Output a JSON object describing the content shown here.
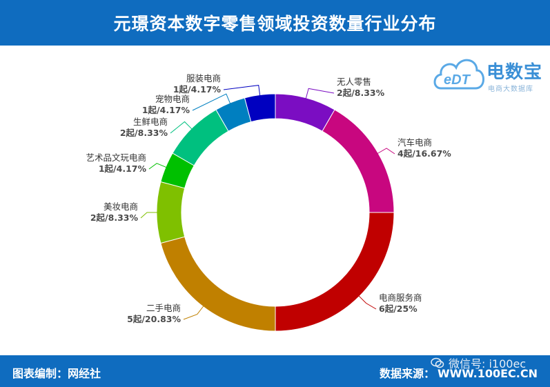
{
  "header": {
    "title": "元璟资本数字零售领域投资数量行业分布"
  },
  "footer": {
    "credit": "图表编制：网经社",
    "source_label": "数据来源：",
    "source_url": "WWW.100EC.CN"
  },
  "watermark": {
    "text": "微信号: i100ec"
  },
  "logo": {
    "mark": "eDT",
    "brand": "电数宝",
    "tagline": "电商大数据库"
  },
  "colors": {
    "header_bg": "#0f6cbf",
    "footer_bg": "#0f6cbf"
  },
  "chart_data": {
    "type": "pie",
    "donut": true,
    "unit": "起",
    "slices": [
      {
        "name": "无人零售",
        "value": 2,
        "percent": "8.33%",
        "label": "2起/8.33%",
        "color": "#7b0dc2"
      },
      {
        "name": "汽车电商",
        "value": 4,
        "percent": "16.67%",
        "label": "4起/16.67%",
        "color": "#c8077f"
      },
      {
        "name": "电商服务商",
        "value": 6,
        "percent": "25%",
        "label": "6起/25%",
        "color": "#c00000"
      },
      {
        "name": "二手电商",
        "value": 5,
        "percent": "20.83%",
        "label": "5起/20.83%",
        "color": "#c08000"
      },
      {
        "name": "美妆电商",
        "value": 2,
        "percent": "8.33%",
        "label": "2起/8.33%",
        "color": "#7fc000"
      },
      {
        "name": "艺术品文玩电商",
        "value": 1,
        "percent": "4.17%",
        "label": "1起/4.17%",
        "color": "#00c000"
      },
      {
        "name": "生鲜电商",
        "value": 2,
        "percent": "8.33%",
        "label": "2起/8.33%",
        "color": "#00c07f"
      },
      {
        "name": "宠物电商",
        "value": 1,
        "percent": "4.17%",
        "label": "1起/4.17%",
        "color": "#007fc0"
      },
      {
        "name": "服装电商",
        "value": 1,
        "percent": "4.17%",
        "label": "1起/4.17%",
        "color": "#0000c0"
      }
    ]
  }
}
